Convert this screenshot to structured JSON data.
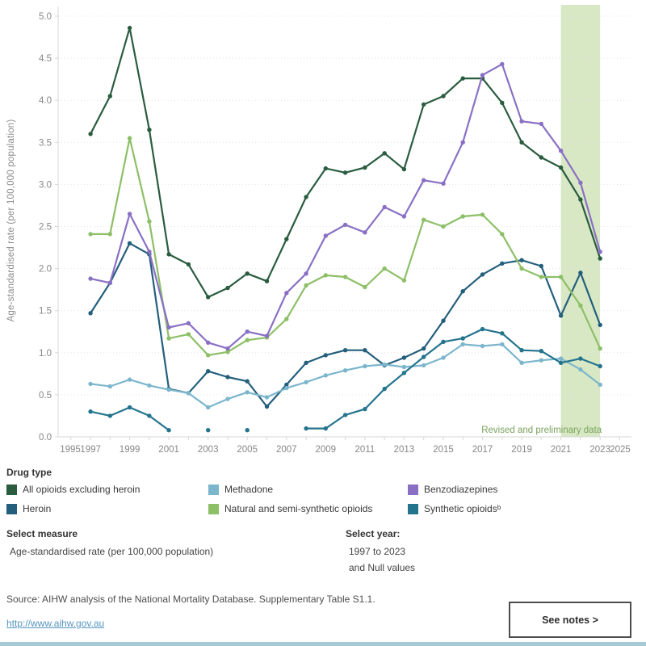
{
  "chart_data": {
    "type": "line",
    "title": "",
    "ylabel": "Age-standardised rate (per 100,000 population)",
    "xlabel": "",
    "ylim": [
      0,
      5.0
    ],
    "ytick_step": 0.5,
    "xticks": [
      1995,
      1997,
      1999,
      2001,
      2003,
      2005,
      2007,
      2009,
      2011,
      2013,
      2015,
      2017,
      2019,
      2021,
      2023,
      2025
    ],
    "grid": "horizontal-dotted",
    "x": [
      1997,
      1998,
      1999,
      2000,
      2001,
      2002,
      2003,
      2004,
      2005,
      2006,
      2007,
      2008,
      2009,
      2010,
      2011,
      2012,
      2013,
      2014,
      2015,
      2016,
      2017,
      2018,
      2019,
      2020,
      2021,
      2022,
      2023
    ],
    "series": [
      {
        "name": "All opioids excluding heroin",
        "color": "#2a5c40",
        "values": [
          3.6,
          4.05,
          4.86,
          3.65,
          2.17,
          2.05,
          1.66,
          1.77,
          1.94,
          1.85,
          2.35,
          2.85,
          3.19,
          3.14,
          3.2,
          3.37,
          3.18,
          3.95,
          4.05,
          4.26,
          4.26,
          3.97,
          3.5,
          3.32,
          3.2,
          2.82,
          2.12
        ]
      },
      {
        "name": "Heroin",
        "color": "#235f7c",
        "values": [
          1.47,
          1.83,
          2.3,
          2.17,
          0.57,
          0.52,
          0.78,
          0.71,
          0.66,
          0.36,
          0.62,
          0.88,
          0.97,
          1.03,
          1.03,
          0.85,
          0.94,
          1.05,
          1.38,
          1.73,
          1.93,
          2.06,
          2.1,
          2.03,
          1.44,
          1.95,
          1.33
        ]
      },
      {
        "name": "Methadone",
        "color": "#7cb6cc",
        "values": [
          0.63,
          0.6,
          0.68,
          0.61,
          0.56,
          0.52,
          0.35,
          0.45,
          0.53,
          0.47,
          0.58,
          0.65,
          0.73,
          0.79,
          0.84,
          0.86,
          0.83,
          0.85,
          0.94,
          1.1,
          1.08,
          1.1,
          0.88,
          0.91,
          0.93,
          0.8,
          0.62
        ]
      },
      {
        "name": "Natural and semi-synthetic opioids",
        "color": "#8dbf67",
        "values": [
          2.41,
          2.41,
          3.55,
          2.56,
          1.17,
          1.22,
          0.97,
          1.01,
          1.15,
          1.18,
          1.4,
          1.8,
          1.92,
          1.9,
          1.78,
          2.0,
          1.86,
          2.58,
          2.5,
          2.62,
          2.64,
          2.41,
          2.0,
          1.9,
          1.9,
          1.56,
          1.05
        ]
      },
      {
        "name": "Benzodiazepines",
        "color": "#8a70c4",
        "values": [
          1.88,
          1.83,
          2.65,
          2.2,
          1.3,
          1.35,
          1.12,
          1.05,
          1.25,
          1.2,
          1.71,
          1.94,
          2.39,
          2.52,
          2.43,
          2.73,
          2.62,
          3.05,
          3.01,
          3.5,
          4.3,
          4.43,
          3.75,
          3.72,
          3.4,
          3.02,
          2.2
        ]
      },
      {
        "name": "Synthetic opioids",
        "color": "#23748d",
        "values": [
          0.3,
          0.25,
          0.35,
          0.25,
          0.08,
          null,
          0.08,
          null,
          0.08,
          null,
          null,
          0.1,
          0.1,
          0.26,
          0.33,
          0.57,
          0.76,
          0.95,
          1.13,
          1.17,
          1.28,
          1.23,
          1.03,
          1.02,
          0.88,
          0.93,
          0.84
        ]
      }
    ],
    "annotation": {
      "label": "Revised and preliminary data",
      "color": "#7aa25e",
      "band": {
        "from": 2021,
        "to": 2023,
        "fill": "#d8e8c5"
      }
    }
  },
  "legend": {
    "title": "Drug type",
    "columns": [
      {
        "items": [
          {
            "label": "All opioids excluding heroin",
            "color": "#2a5c40"
          },
          {
            "label": "Heroin",
            "color": "#235f7c"
          }
        ]
      },
      {
        "items": [
          {
            "label": "Methadone",
            "color": "#7cb6cc"
          },
          {
            "label": "Natural and semi-synthetic opioids",
            "color": "#8dbf67"
          }
        ]
      },
      {
        "items": [
          {
            "label": "Benzodiazepines",
            "color": "#8a70c4"
          },
          {
            "label": "Synthetic opioidsᵇ",
            "color": "#23748d"
          }
        ]
      }
    ]
  },
  "controls": {
    "measure": {
      "label": "Select measure",
      "value": "Age-standardised rate (per 100,000 population)"
    },
    "year": {
      "label": "Select year:",
      "value_line1": "1997 to 2023",
      "value_line2": "and Null values"
    }
  },
  "footer": {
    "source": "Source: AIHW analysis of the National Mortality Database. Supplementary Table S1.1.",
    "link": "http://www.aihw.gov.au",
    "notes_button": "See notes >"
  }
}
